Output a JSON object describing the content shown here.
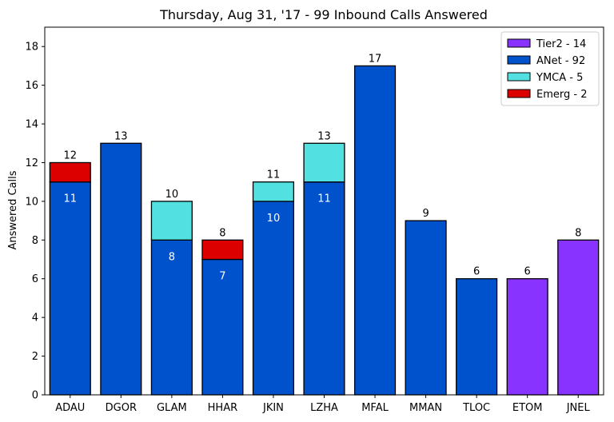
{
  "chart_data": {
    "type": "bar",
    "stacked": true,
    "title": "Thursday, Aug 31, '17 - 99 Inbound Calls Answered",
    "xlabel": "",
    "ylabel": "Answered Calls",
    "ylim": [
      0,
      19
    ],
    "yticks": [
      0,
      2,
      4,
      6,
      8,
      10,
      12,
      14,
      16,
      18
    ],
    "grid": false,
    "legend_position": "top-right",
    "categories": [
      "ADAU",
      "DGOR",
      "GLAM",
      "HHAR",
      "JKIN",
      "LZHA",
      "MFAL",
      "MMAN",
      "TLOC",
      "ETOM",
      "JNEL"
    ],
    "series": [
      {
        "name": "Tier2 - 14",
        "color": "#8833ff",
        "values": [
          0,
          0,
          0,
          0,
          0,
          0,
          0,
          0,
          0,
          6,
          8
        ]
      },
      {
        "name": "ANet - 92",
        "color": "#0052cc",
        "values": [
          11,
          13,
          8,
          7,
          10,
          11,
          17,
          9,
          6,
          0,
          0
        ]
      },
      {
        "name": "YMCA - 5",
        "color": "#52e0e0",
        "values": [
          0,
          0,
          2,
          0,
          1,
          2,
          0,
          0,
          0,
          0,
          0
        ]
      },
      {
        "name": "Emerg - 2",
        "color": "#dd0000",
        "values": [
          1,
          0,
          0,
          1,
          0,
          0,
          0,
          0,
          0,
          0,
          0
        ]
      }
    ],
    "totals": [
      12,
      13,
      10,
      8,
      11,
      13,
      17,
      9,
      6,
      6,
      8
    ],
    "inner_labels": [
      11,
      null,
      8,
      7,
      10,
      11,
      null,
      null,
      null,
      null,
      null
    ]
  }
}
